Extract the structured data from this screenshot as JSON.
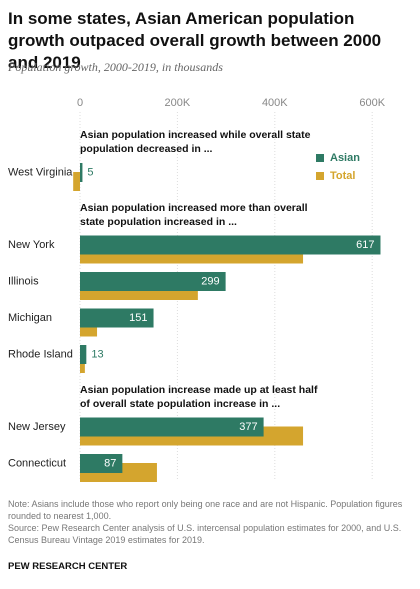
{
  "chart_data": {
    "type": "bar",
    "orientation": "horizontal",
    "title": "In some states, Asian American population growth outpaced overall growth between 2000 and 2019",
    "subtitle": "Population growth, 2000-2019, in thousands",
    "categories": [
      "West Virginia",
      "New York",
      "Illinois",
      "Michigan",
      "Rhode Island",
      "New Jersey",
      "Connecticut"
    ],
    "group_headings": [
      {
        "text": "Asian population increased while overall state population decreased in ...",
        "first_category": "West Virginia"
      },
      {
        "text": "Asian population increased more than overall state population increased in ...",
        "first_category": "New York"
      },
      {
        "text": "Asian population increase made up at least half of overall state population increase in ...",
        "first_category": "New Jersey"
      }
    ],
    "series": [
      {
        "name": "Asian",
        "color": "#2e7a64",
        "values": [
          5,
          617,
          299,
          151,
          13,
          377,
          87
        ]
      },
      {
        "name": "Total",
        "color": "#d4a52e",
        "values": [
          -14,
          458,
          242,
          35,
          10,
          458,
          158
        ]
      }
    ],
    "xlim": [
      -20,
      620
    ],
    "xticks": [
      0,
      {
        "value": 200,
        "label": "200K"
      },
      {
        "value": 400,
        "label": "400K"
      },
      {
        "value": 600,
        "label": "600K"
      }
    ],
    "grid": true,
    "legend": "top-right",
    "notes": [
      "Note: Asians include those who report only being one race and are not Hispanic. Population figures rounded to nearest 1,000.",
      "Source: Pew Research Center analysis of U.S. intercensal population estimates for 2000, and U.S. Census Bureau Vintage 2019 estimates for 2019."
    ],
    "source_label": "PEW RESEARCH CENTER"
  }
}
